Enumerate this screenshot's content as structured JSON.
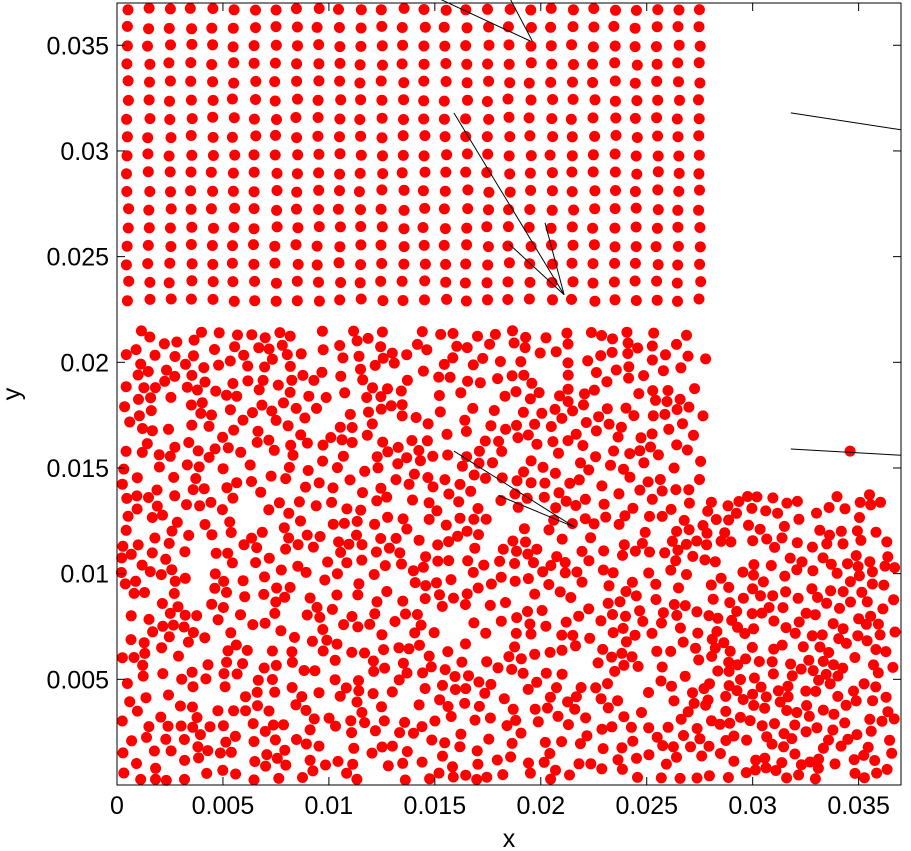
{
  "chart_data": {
    "type": "scatter",
    "xlabel": "x",
    "ylabel": "y",
    "xlim": [
      0,
      0.037
    ],
    "ylim": [
      0,
      0.037
    ],
    "xticks": [
      0,
      0.005,
      0.01,
      0.015,
      0.02,
      0.025,
      0.03,
      0.035
    ],
    "xtick_labels": [
      "0",
      "0.005",
      "0.01",
      "0.015",
      "0.02",
      "0.025",
      "0.03",
      "0.035"
    ],
    "yticks": [
      0.005,
      0.01,
      0.015,
      0.02,
      0.025,
      0.03,
      0.035
    ],
    "ytick_labels": [
      "0.005",
      "0.01",
      "0.015",
      "0.02",
      "0.025",
      "0.03",
      "0.035"
    ],
    "grid": false,
    "marker_color": "#ff0000",
    "line_color": "#000000",
    "points": {
      "grid_region": {
        "description_free": true,
        "x_range": [
          0.0005,
          0.0277
        ],
        "y_range": [
          0.0225,
          0.0367
        ],
        "x_spacing": 0.001,
        "y_spacing": 0.00086
      },
      "random_regions": [
        {
          "x_range": [
            0.0002,
            0.0278
          ],
          "y_range": [
            0.0002,
            0.0215
          ],
          "count": 1000
        },
        {
          "x_range": [
            0.0278,
            0.0368
          ],
          "y_range": [
            0.0002,
            0.0138
          ],
          "count": 260
        }
      ],
      "isolated": [
        [
          0.0346,
          0.0158
        ]
      ]
    },
    "segments": [
      [
        [
          0.015,
          0.0373
        ],
        [
          0.0195,
          0.0352
        ]
      ],
      [
        [
          0.0185,
          0.0373
        ],
        [
          0.0196,
          0.0352
        ]
      ],
      [
        [
          0.0159,
          0.0318
        ],
        [
          0.0211,
          0.0232
        ]
      ],
      [
        [
          0.0185,
          0.0256
        ],
        [
          0.0211,
          0.0232
        ]
      ],
      [
        [
          0.0202,
          0.0266
        ],
        [
          0.0211,
          0.0232
        ]
      ],
      [
        [
          0.0318,
          0.0318
        ],
        [
          0.037,
          0.031
        ]
      ],
      [
        [
          0.0159,
          0.0158
        ],
        [
          0.0216,
          0.0122
        ]
      ],
      [
        [
          0.018,
          0.0137
        ],
        [
          0.0216,
          0.0122
        ]
      ],
      [
        [
          0.0318,
          0.0159
        ],
        [
          0.037,
          0.0156
        ]
      ]
    ]
  }
}
